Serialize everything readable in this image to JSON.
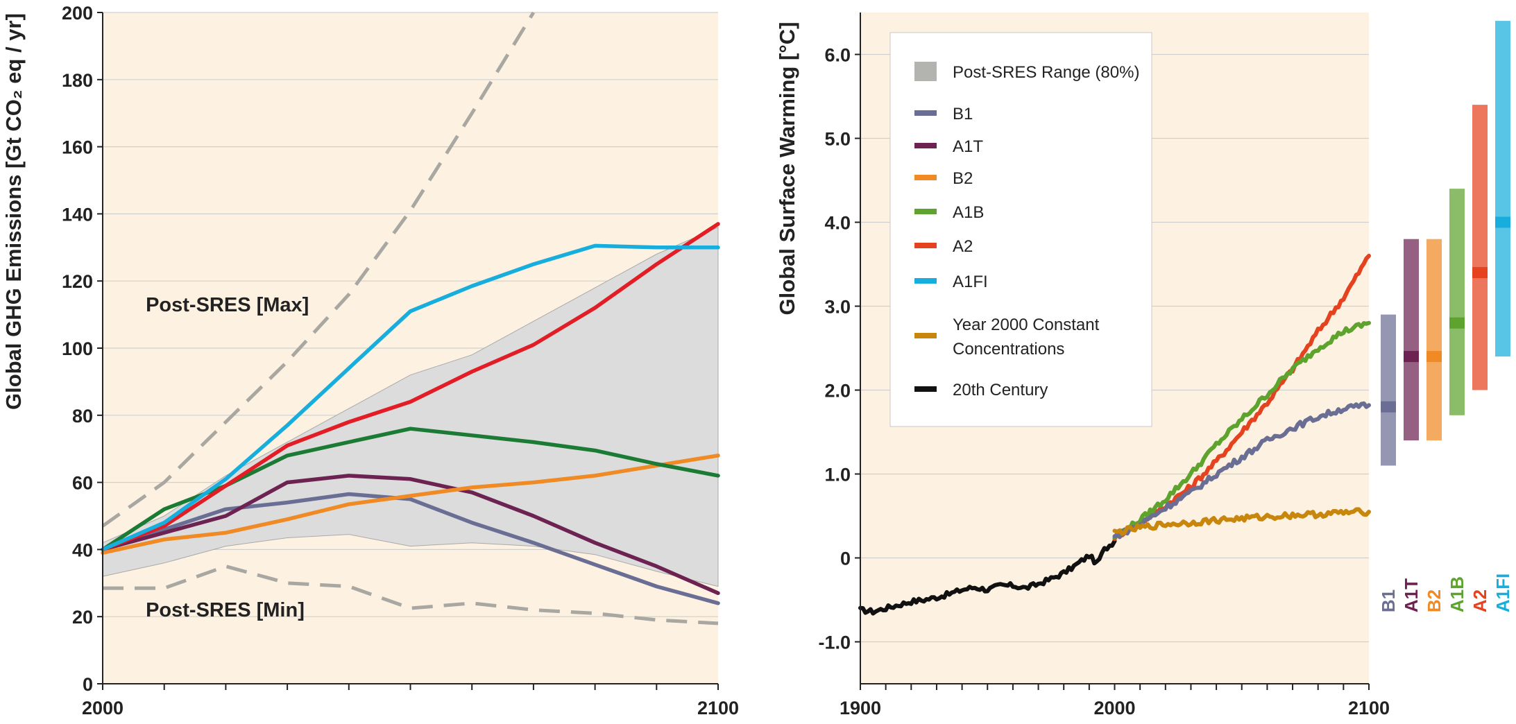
{
  "chart_data": [
    {
      "type": "line",
      "ylabel": "Global GHG Emissions [Gt CO₂ eq / yr]",
      "xlim": [
        2000,
        2100
      ],
      "ylim": [
        0,
        200
      ],
      "x_tick_labels": [
        "2000",
        "2100"
      ],
      "y_tick_labels": [
        "0",
        "20",
        "40",
        "60",
        "80",
        "100",
        "120",
        "140",
        "160",
        "180",
        "200"
      ],
      "grid": "horizontal",
      "background": "#fdf2e1",
      "range_band": {
        "x": [
          2000,
          2010,
          2020,
          2030,
          2040,
          2050,
          2060,
          2070,
          2080,
          2090,
          2100
        ],
        "low": [
          32,
          36,
          41,
          43.5,
          44.5,
          41,
          42,
          41,
          38.5,
          33.5,
          29
        ],
        "high": [
          42,
          50,
          62,
          72,
          82,
          92,
          98,
          108,
          118,
          128,
          136
        ],
        "color": "#dcdcdc"
      },
      "series": [
        {
          "name": "B1",
          "color": "#6b6e94",
          "x": [
            2000,
            2010,
            2020,
            2030,
            2040,
            2050,
            2060,
            2070,
            2080,
            2090,
            2100
          ],
          "values": [
            40,
            46,
            52,
            54,
            56.5,
            55,
            48,
            42,
            35.5,
            29,
            24
          ]
        },
        {
          "name": "A1T",
          "color": "#6d2352",
          "x": [
            2000,
            2010,
            2020,
            2030,
            2040,
            2050,
            2060,
            2070,
            2080,
            2090,
            2100
          ],
          "values": [
            40,
            45,
            50,
            60,
            62,
            61,
            57,
            50,
            42,
            35,
            27
          ]
        },
        {
          "name": "B2",
          "color": "#f08a24",
          "x": [
            2000,
            2010,
            2020,
            2030,
            2040,
            2050,
            2060,
            2070,
            2080,
            2090,
            2100
          ],
          "values": [
            39,
            43,
            45,
            49,
            53.5,
            56,
            58.5,
            60,
            62,
            65,
            68
          ]
        },
        {
          "name": "A1B",
          "color": "#1b7a34",
          "x": [
            2000,
            2010,
            2020,
            2030,
            2040,
            2050,
            2060,
            2070,
            2080,
            2090,
            2100
          ],
          "values": [
            40,
            52,
            59,
            68,
            72,
            76,
            74,
            72,
            69.5,
            65.5,
            62
          ]
        },
        {
          "name": "A2",
          "color": "#e31d26",
          "x": [
            2000,
            2010,
            2020,
            2030,
            2040,
            2050,
            2060,
            2070,
            2080,
            2090,
            2100
          ],
          "values": [
            40,
            47,
            59,
            71,
            78,
            84,
            93,
            101,
            112,
            125,
            137
          ]
        },
        {
          "name": "A1FI",
          "color": "#17aede",
          "x": [
            2000,
            2010,
            2020,
            2030,
            2040,
            2050,
            2060,
            2070,
            2080,
            2090,
            2100
          ],
          "values": [
            40,
            48,
            61,
            77,
            94,
            111,
            118.5,
            125,
            130.5,
            130,
            130
          ]
        },
        {
          "name": "Post-SRES [Max]",
          "style": "dashed",
          "color": "#a9a7a2",
          "x": [
            2000,
            2010,
            2020,
            2030,
            2040,
            2050,
            2060,
            2070
          ],
          "values": [
            47,
            60,
            78,
            96,
            116,
            141,
            170,
            200
          ]
        },
        {
          "name": "Post-SRES [Min]",
          "style": "dashed",
          "color": "#a9a7a2",
          "x": [
            2000,
            2010,
            2020,
            2030,
            2040,
            2050,
            2060,
            2070,
            2080,
            2090,
            2100
          ],
          "values": [
            28.5,
            28.5,
            35,
            30,
            29,
            22.5,
            24,
            22,
            21,
            19,
            18
          ]
        }
      ],
      "annotations": [
        {
          "text": "Post-SRES [Max]",
          "x": 2007,
          "y": 111
        },
        {
          "text": "Post-SRES [Min]",
          "x": 2007,
          "y": 20
        }
      ]
    },
    {
      "type": "line",
      "ylabel": "Global Surface Warming [°C]",
      "xlim": [
        1900,
        2100
      ],
      "ylim": [
        -1.5,
        6.5
      ],
      "x_tick_labels": [
        "1900",
        "2000",
        "2100"
      ],
      "y_tick_labels": [
        "-1.0",
        "0",
        "1.0",
        "2.0",
        "3.0",
        "4.0",
        "5.0",
        "6.0"
      ],
      "y_tick_values": [
        -1.0,
        0,
        1.0,
        2.0,
        3.0,
        4.0,
        5.0,
        6.0
      ],
      "grid": "horizontal",
      "background": "#fdf2e1",
      "legend": {
        "placement": "top-left",
        "entries": [
          {
            "label": "Post-SRES Range (80%)",
            "color": "#b3b3b0",
            "kind": "patch"
          },
          {
            "label": "B1",
            "color": "#6b6e94",
            "kind": "line"
          },
          {
            "label": "A1T",
            "color": "#6d2352",
            "kind": "line"
          },
          {
            "label": "B2",
            "color": "#f08a24",
            "kind": "line"
          },
          {
            "label": "A1B",
            "color": "#5ea32e",
            "kind": "line"
          },
          {
            "label": "A2",
            "color": "#e5431f",
            "kind": "line"
          },
          {
            "label": "A1FI",
            "color": "#17aede",
            "kind": "line"
          },
          {
            "label": "Year 2000 Constant",
            "label2": "Concentrations",
            "color": "#c8860c",
            "kind": "line"
          },
          {
            "label": "20th Century",
            "color": "#111111",
            "kind": "line"
          }
        ]
      },
      "series": [
        {
          "name": "20th Century",
          "color": "#111111",
          "x": [
            1900,
            1905,
            1910,
            1915,
            1920,
            1925,
            1930,
            1935,
            1940,
            1945,
            1950,
            1955,
            1960,
            1965,
            1970,
            1975,
            1980,
            1985,
            1990,
            1993,
            1996,
            2000
          ],
          "values": [
            -0.62,
            -0.64,
            -0.6,
            -0.56,
            -0.52,
            -0.5,
            -0.47,
            -0.43,
            -0.38,
            -0.35,
            -0.38,
            -0.33,
            -0.33,
            -0.36,
            -0.31,
            -0.25,
            -0.18,
            -0.08,
            0.03,
            -0.07,
            0.1,
            0.2
          ]
        },
        {
          "name": "A2",
          "color": "#e5431f",
          "x": [
            2000,
            2010,
            2020,
            2030,
            2040,
            2050,
            2060,
            2070,
            2080,
            2090,
            2100
          ],
          "values": [
            0.25,
            0.42,
            0.62,
            0.85,
            1.15,
            1.5,
            1.85,
            2.25,
            2.7,
            3.1,
            3.6
          ]
        },
        {
          "name": "A1B",
          "color": "#5ea32e",
          "x": [
            2000,
            2010,
            2020,
            2030,
            2040,
            2050,
            2060,
            2070,
            2080,
            2090,
            2100
          ],
          "values": [
            0.25,
            0.45,
            0.7,
            1.0,
            1.35,
            1.65,
            1.95,
            2.25,
            2.5,
            2.7,
            2.8
          ]
        },
        {
          "name": "B1",
          "color": "#6b6e94",
          "x": [
            2000,
            2010,
            2020,
            2030,
            2040,
            2050,
            2060,
            2070,
            2080,
            2090,
            2100
          ],
          "values": [
            0.25,
            0.4,
            0.6,
            0.78,
            1.0,
            1.2,
            1.4,
            1.55,
            1.68,
            1.78,
            1.82
          ]
        },
        {
          "name": "Year 2000 Constant Concentrations",
          "color": "#c8860c",
          "x": [
            2000,
            2010,
            2020,
            2030,
            2040,
            2050,
            2060,
            2070,
            2080,
            2090,
            2100
          ],
          "values": [
            0.3,
            0.36,
            0.4,
            0.42,
            0.45,
            0.47,
            0.49,
            0.51,
            0.52,
            0.54,
            0.55
          ]
        }
      ],
      "scenario_ranges": [
        {
          "name": "B1",
          "color": "#6b6e94",
          "low": 1.1,
          "high": 2.9,
          "best": 1.8
        },
        {
          "name": "A1T",
          "color": "#6d2352",
          "low": 1.4,
          "high": 3.8,
          "best": 2.4
        },
        {
          "name": "B2",
          "color": "#f08a24",
          "low": 1.4,
          "high": 3.8,
          "best": 2.4
        },
        {
          "name": "A1B",
          "color": "#5ea32e",
          "low": 1.7,
          "high": 4.4,
          "best": 2.8
        },
        {
          "name": "A2",
          "color": "#e5431f",
          "low": 2.0,
          "high": 5.4,
          "best": 3.4
        },
        {
          "name": "A1FI",
          "color": "#17aede",
          "low": 2.4,
          "high": 6.4,
          "best": 4.0
        }
      ]
    }
  ]
}
